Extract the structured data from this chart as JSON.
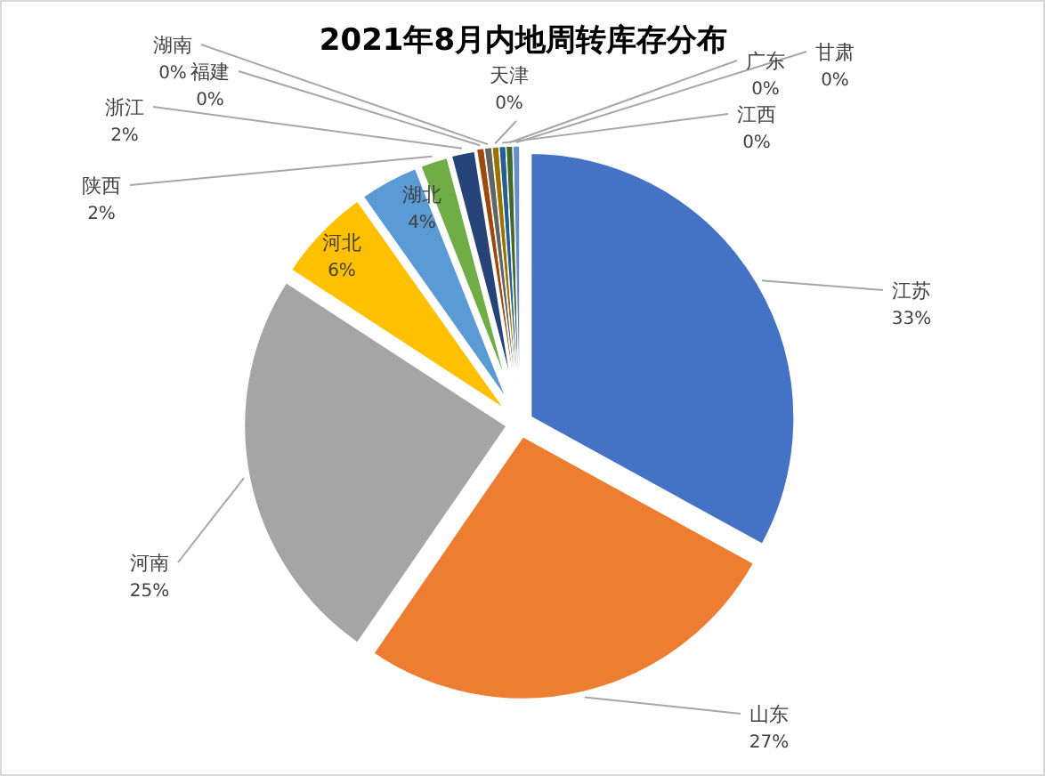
{
  "chart_data": {
    "type": "pie",
    "title": "2021年8月内地周转库存分布",
    "categories": [
      "江苏",
      "山东",
      "河南",
      "河北",
      "湖北",
      "陕西",
      "浙江",
      "福建",
      "湖南",
      "天津",
      "江西",
      "广东",
      "甘肃"
    ],
    "values": [
      33.0,
      26.6,
      24.6,
      6.0,
      3.8,
      1.9,
      1.6,
      0.45,
      0.45,
      0.4,
      0.4,
      0.4,
      0.4
    ],
    "value_labels": [
      "33%",
      "27%",
      "25%",
      "6%",
      "4%",
      "2%",
      "2%",
      "0%",
      "0%",
      "0%",
      "0%",
      "0%",
      "0%"
    ],
    "colors": [
      "#4472c4",
      "#ed7d31",
      "#a5a5a5",
      "#ffc000",
      "#5b9bd5",
      "#70ad47",
      "#264478",
      "#9e480e",
      "#636363",
      "#997300",
      "#255e91",
      "#43682b",
      "#698ed0"
    ]
  }
}
